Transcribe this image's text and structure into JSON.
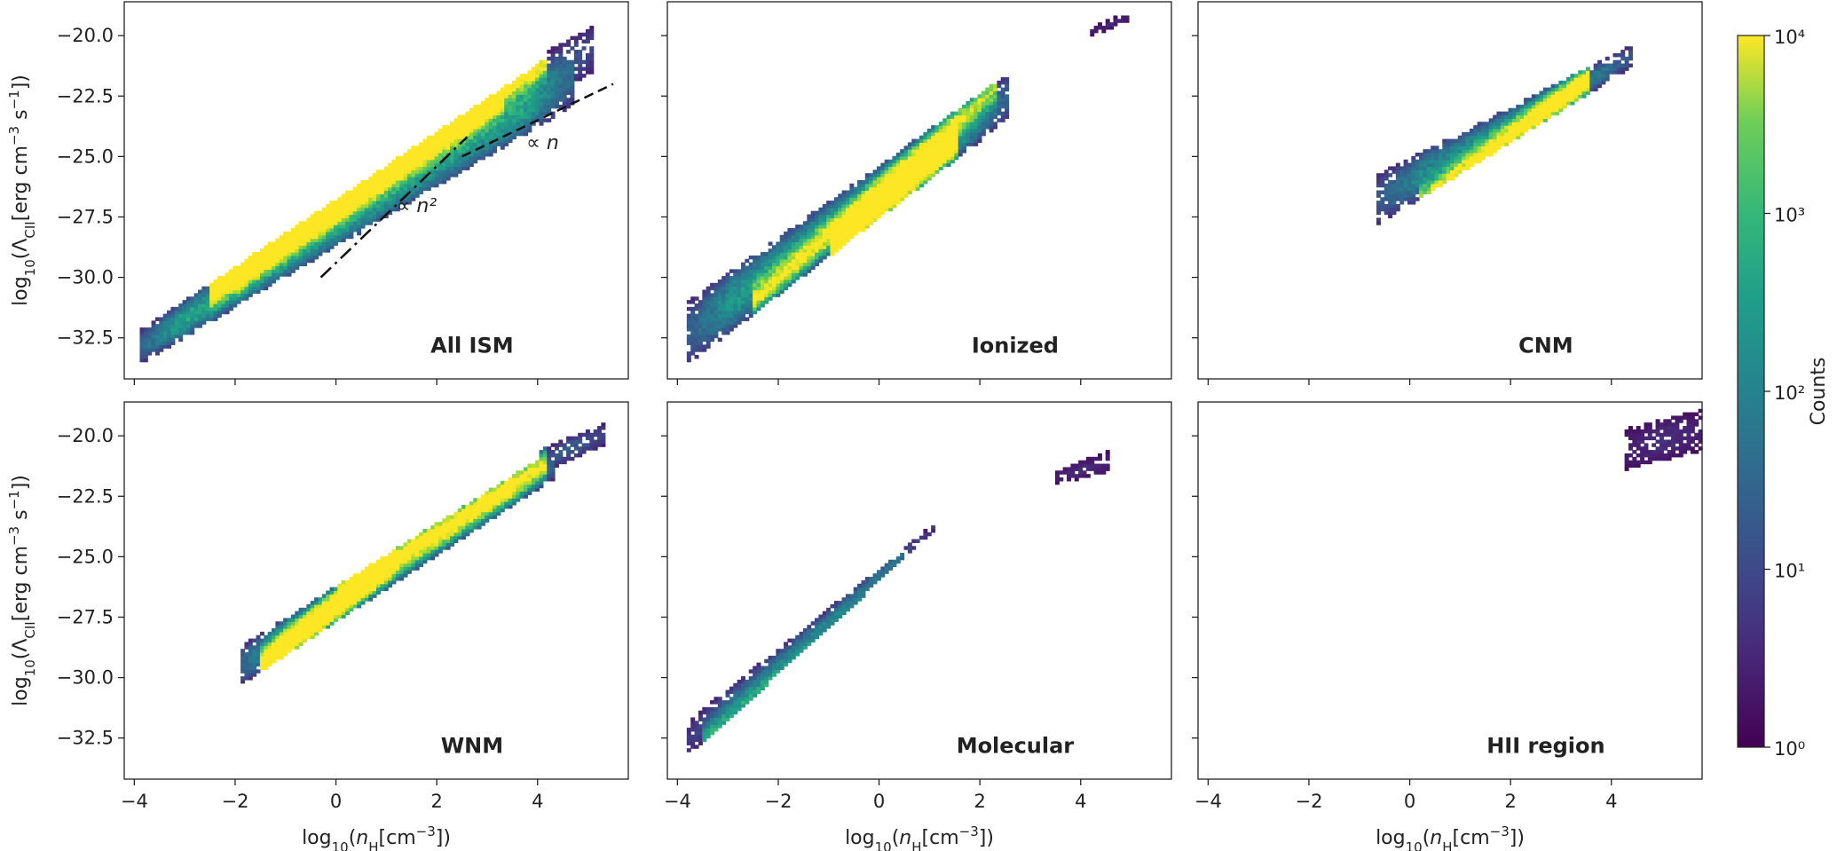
{
  "chart_data": {
    "type": "heatmap",
    "kind": "2D histogram (log color scale)",
    "shared_axes": {
      "xlabel": "log10(n_H[cm^-3])",
      "ylabel": "log10(Λ_CII[erg cm^-3 s^-1])",
      "xlim": [
        -4.2,
        5.8
      ],
      "ylim": [
        -34.2,
        -18.6
      ],
      "xticks": [
        -4,
        -2,
        0,
        2,
        4
      ],
      "xtick_labels": [
        "−4",
        "−2",
        "0",
        "2",
        "4"
      ],
      "yticks": [
        -20.0,
        -22.5,
        -25.0,
        -27.5,
        -30.0,
        -32.5
      ],
      "ytick_labels": [
        "−20.0",
        "−22.5",
        "−25.0",
        "−27.5",
        "−30.0",
        "−32.5"
      ]
    },
    "colorbar": {
      "label": "Counts",
      "scale": "log",
      "range": [
        1,
        10000
      ],
      "tick_labels": [
        "10⁰",
        "10¹",
        "10²",
        "10³",
        "10⁴"
      ],
      "colormap": "viridis"
    },
    "panels": [
      {
        "label": "All ISM",
        "blobs": [
          {
            "x0": -3.9,
            "x1": 4.7,
            "lo0": -33.6,
            "lo1": -22.9,
            "hi0": -32.2,
            "hi1": -20.2,
            "w": 1.0
          },
          {
            "x0": 4.2,
            "x1": 5.1,
            "lo0": -22.6,
            "lo1": -21.5,
            "hi0": -20.6,
            "hi1": -19.6,
            "w": 0.6
          }
        ],
        "ridges": [
          {
            "x0": -2.0,
            "y0": -29.8,
            "x1": 4.2,
            "y1": -20.9,
            "w": 0.9
          },
          {
            "x0": -2.5,
            "y0": -30.5,
            "x1": 3.3,
            "y1": -22.4,
            "w": 1.1
          }
        ],
        "annotations": [
          {
            "text": "∝ n",
            "x": 4.1,
            "y": -24.7
          },
          {
            "text": "∝ n²",
            "x": 1.6,
            "y": -27.3
          }
        ],
        "guide_lines": [
          {
            "style": "dashed",
            "x0": 2.5,
            "y0": -25.0,
            "x1": 5.5,
            "y1": -22.0
          },
          {
            "style": "dashdot",
            "x0": -0.3,
            "y0": -30.0,
            "x1": 2.6,
            "y1": -24.2
          }
        ]
      },
      {
        "label": "Ionized",
        "blobs": [
          {
            "x0": -3.8,
            "x1": 2.6,
            "lo0": -33.6,
            "lo1": -23.4,
            "hi0": -31.0,
            "hi1": -21.5,
            "w": 0.9
          },
          {
            "x0": 4.2,
            "x1": 5.0,
            "lo0": -20.0,
            "lo1": -19.4,
            "hi0": -19.6,
            "hi1": -19.0,
            "w": 0.25
          }
        ],
        "ridges": [
          {
            "x0": -1.0,
            "y0": -29.0,
            "x1": 1.6,
            "y1": -24.3,
            "w": 1.0
          },
          {
            "x0": -2.5,
            "y0": -31.0,
            "x1": 2.3,
            "y1": -22.1,
            "w": 0.6
          }
        ],
        "annotations": [],
        "guide_lines": []
      },
      {
        "label": "CNM",
        "blobs": [
          {
            "x0": -0.7,
            "x1": 4.4,
            "lo0": -27.9,
            "lo1": -21.3,
            "hi0": -25.8,
            "hi1": -20.4,
            "w": 0.8
          }
        ],
        "ridges": [
          {
            "x0": 0.2,
            "y0": -27.0,
            "x1": 3.6,
            "y1": -21.7,
            "w": 0.9
          }
        ],
        "annotations": [],
        "guide_lines": []
      },
      {
        "label": "WNM",
        "blobs": [
          {
            "x0": -1.9,
            "x1": 4.3,
            "lo0": -30.3,
            "lo1": -21.8,
            "hi0": -28.7,
            "hi1": -20.6,
            "w": 1.0
          },
          {
            "x0": 4.0,
            "x1": 5.3,
            "lo0": -21.6,
            "lo1": -20.4,
            "hi0": -20.6,
            "hi1": -19.5,
            "w": 0.6
          }
        ],
        "ridges": [
          {
            "x0": -1.5,
            "y0": -29.6,
            "x1": 1.2,
            "y1": -24.9,
            "w": 1.1
          },
          {
            "x0": 0.0,
            "y0": -26.6,
            "x1": 4.2,
            "y1": -21.0,
            "w": 0.7
          }
        ],
        "annotations": [],
        "guide_lines": []
      },
      {
        "label": "Molecular",
        "blobs": [
          {
            "x0": -3.8,
            "x1": 1.1,
            "lo0": -33.3,
            "lo1": -23.9,
            "hi0": -31.8,
            "hi1": -23.6,
            "w": 0.5
          },
          {
            "x0": 3.5,
            "x1": 4.6,
            "lo0": -22.0,
            "lo1": -21.5,
            "hi0": -21.4,
            "hi1": -20.6,
            "w": 0.25
          }
        ],
        "ridges": [
          {
            "x0": -3.5,
            "y0": -32.7,
            "x1": 0.5,
            "y1": -25.6,
            "w": 0.5
          }
        ],
        "annotations": [],
        "guide_lines": []
      },
      {
        "label": "HII region",
        "blobs": [
          {
            "x0": 4.3,
            "x1": 5.8,
            "lo0": -21.4,
            "lo1": -20.6,
            "hi0": -19.7,
            "hi1": -18.9,
            "w": 0.25
          }
        ],
        "ridges": [],
        "annotations": [],
        "guide_lines": []
      }
    ]
  }
}
